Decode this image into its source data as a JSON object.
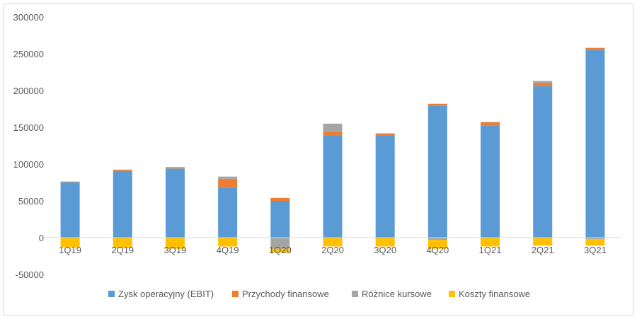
{
  "chart_data": {
    "type": "bar",
    "stacked": true,
    "title": "",
    "xlabel": "",
    "ylabel": "",
    "ylim": [
      -50000,
      300000
    ],
    "yticks": [
      -50000,
      0,
      50000,
      100000,
      150000,
      200000,
      250000,
      300000
    ],
    "ytick_labels": [
      "-50000",
      "0",
      "50000",
      "100000",
      "150000",
      "200000",
      "250000",
      "300000"
    ],
    "grid": false,
    "legend_position": "bottom",
    "categories": [
      "1Q19",
      "2Q19",
      "3Q19",
      "4Q19",
      "1Q20",
      "2Q20",
      "3Q20",
      "4Q20",
      "1Q21",
      "2Q21",
      "3Q21"
    ],
    "series": [
      {
        "name": "Zysk operacyjny (EBIT)",
        "color": "#5b9bd5",
        "values": [
          75500,
          90500,
          94000,
          68000,
          50000,
          139000,
          139000,
          179000,
          152000,
          206000,
          255000
        ]
      },
      {
        "name": "Przychody finansowe",
        "color": "#ed7d31",
        "values": [
          300,
          1500,
          1000,
          12000,
          4000,
          5000,
          2500,
          3000,
          5000,
          4000,
          3000
        ]
      },
      {
        "name": "Różnice kursowe",
        "color": "#a5a5a5",
        "values": [
          500,
          600,
          1000,
          3000,
          -15000,
          11000,
          300,
          -3000,
          400,
          3000,
          -2000
        ]
      },
      {
        "name": "Koszty finansowe",
        "color": "#ffc000",
        "values": [
          -13000,
          -14000,
          -15000,
          -12000,
          -5000,
          -12000,
          -12000,
          -12000,
          -12000,
          -11000,
          -9000
        ]
      }
    ]
  }
}
